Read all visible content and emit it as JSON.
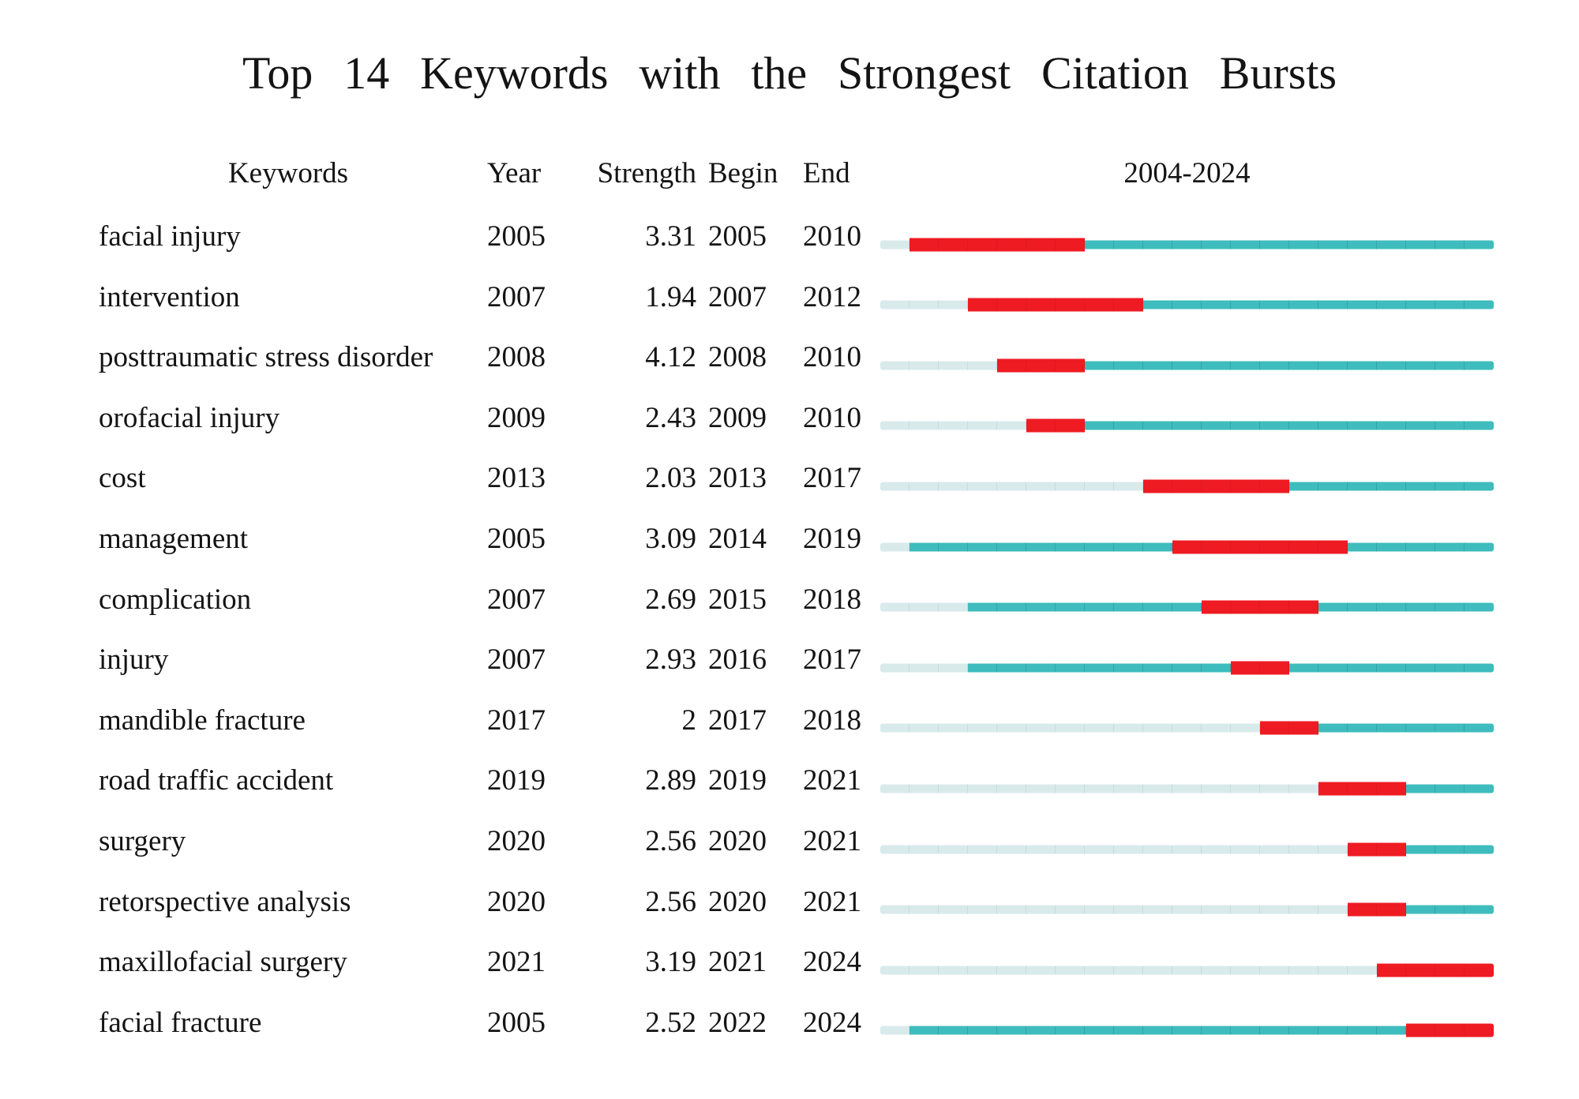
{
  "title": "Top 14 Keywords with the Strongest Citation Bursts",
  "columns": {
    "keywords": "Keywords",
    "year": "Year",
    "strength": "Strength",
    "begin": "Begin",
    "end": "End",
    "timespan": "2004-2024"
  },
  "chart_data": {
    "type": "burst-timeline",
    "title": "Top 14 Keywords with the Strongest Citation Bursts",
    "timeline_start": 2004,
    "timeline_end": 2024,
    "legend": {
      "burst_color": "#ee1b23",
      "active_color": "#3fbcbd",
      "inactive_color": "#d9eaeb"
    },
    "rows": [
      {
        "keyword": "facial injury",
        "year": 2005,
        "strength": "3.31",
        "begin": 2005,
        "end": 2010
      },
      {
        "keyword": "intervention",
        "year": 2007,
        "strength": "1.94",
        "begin": 2007,
        "end": 2012
      },
      {
        "keyword": "posttraumatic stress disorder",
        "year": 2008,
        "strength": "4.12",
        "begin": 2008,
        "end": 2010
      },
      {
        "keyword": "orofacial injury",
        "year": 2009,
        "strength": "2.43",
        "begin": 2009,
        "end": 2010
      },
      {
        "keyword": "cost",
        "year": 2013,
        "strength": "2.03",
        "begin": 2013,
        "end": 2017
      },
      {
        "keyword": "management",
        "year": 2005,
        "strength": "3.09",
        "begin": 2014,
        "end": 2019
      },
      {
        "keyword": "complication",
        "year": 2007,
        "strength": "2.69",
        "begin": 2015,
        "end": 2018
      },
      {
        "keyword": "injury",
        "year": 2007,
        "strength": "2.93",
        "begin": 2016,
        "end": 2017
      },
      {
        "keyword": "mandible fracture",
        "year": 2017,
        "strength": "2",
        "begin": 2017,
        "end": 2018
      },
      {
        "keyword": "road traffic accident",
        "year": 2019,
        "strength": "2.89",
        "begin": 2019,
        "end": 2021
      },
      {
        "keyword": "surgery",
        "year": 2020,
        "strength": "2.56",
        "begin": 2020,
        "end": 2021
      },
      {
        "keyword": "retorspective analysis",
        "year": 2020,
        "strength": "2.56",
        "begin": 2020,
        "end": 2021
      },
      {
        "keyword": "maxillofacial surgery",
        "year": 2021,
        "strength": "3.19",
        "begin": 2021,
        "end": 2024
      },
      {
        "keyword": "facial fracture",
        "year": 2005,
        "strength": "2.52",
        "begin": 2022,
        "end": 2024
      }
    ]
  }
}
